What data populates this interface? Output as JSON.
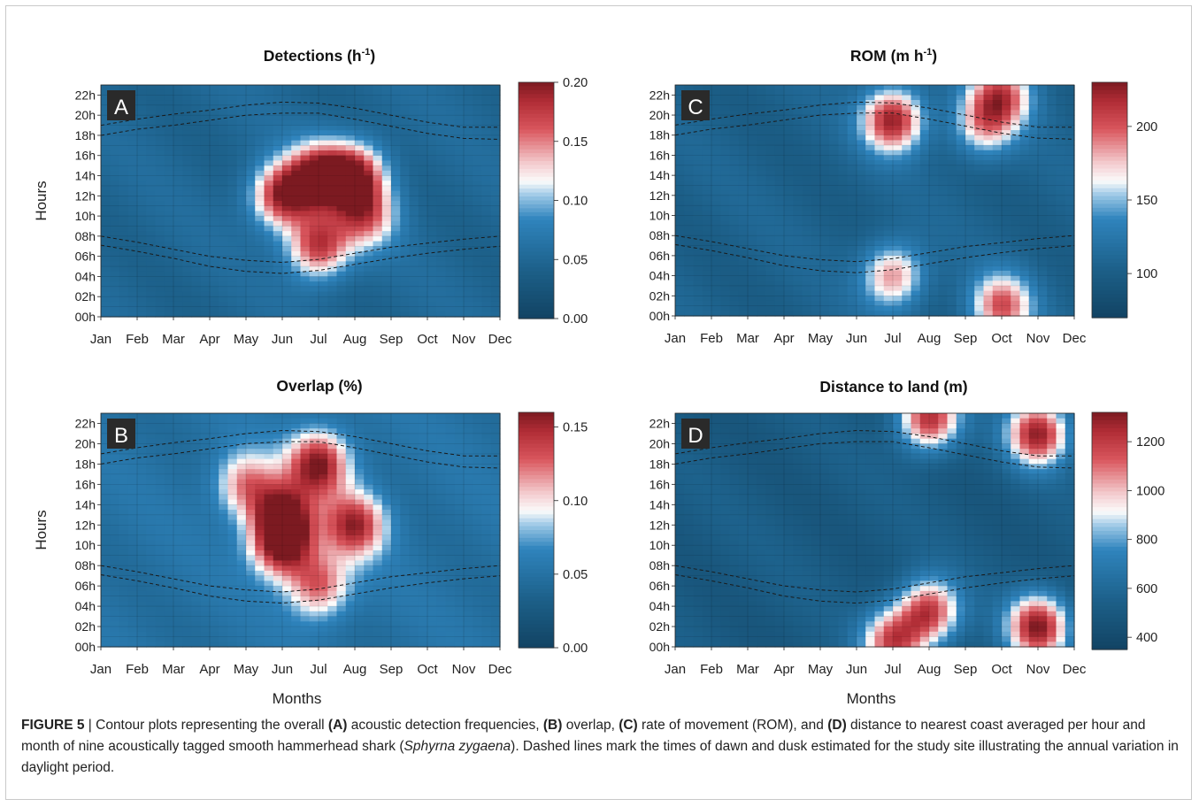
{
  "figure": {
    "caption_label": "FIGURE 5",
    "caption_sep": " | ",
    "caption_parts": [
      {
        "t": "Contour plots representing the overall ",
        "s": "n"
      },
      {
        "t": "(A)",
        "s": "b"
      },
      {
        "t": " acoustic detection frequencies, ",
        "s": "n"
      },
      {
        "t": "(B)",
        "s": "b"
      },
      {
        "t": " overlap, ",
        "s": "n"
      },
      {
        "t": "(C)",
        "s": "b"
      },
      {
        "t": " rate of movement (ROM), and ",
        "s": "n"
      },
      {
        "t": "(D)",
        "s": "b"
      },
      {
        "t": " distance to nearest coast averaged per hour and month of nine acoustically tagged smooth hammerhead shark (",
        "s": "n"
      },
      {
        "t": "Sphyrna zygaena",
        "s": "i"
      },
      {
        "t": "). Dashed lines mark the times of dawn and dusk estimated for the study site illustrating the annual variation in daylight period.",
        "s": "n"
      }
    ]
  },
  "axes": {
    "months": [
      "Jan",
      "Feb",
      "Mar",
      "Apr",
      "May",
      "Jun",
      "Jul",
      "Aug",
      "Sep",
      "Oct",
      "Nov",
      "Dec"
    ],
    "hours": [
      "00h",
      "02h",
      "04h",
      "06h",
      "08h",
      "10h",
      "12h",
      "14h",
      "16h",
      "18h",
      "20h",
      "22h"
    ],
    "xlabel": "Months",
    "ylabel": "Hours"
  },
  "colors": {
    "low": "#124363",
    "mid": "#fbfbfb",
    "high": "#7c1a21",
    "dashed_line": "#1a1a1a"
  },
  "chart_data": [
    {
      "type": "heatmap",
      "panel": "A",
      "title": "Detections (h",
      "title_sup": "-1",
      "title_end": ")",
      "x_months": [
        "Jan",
        "Jun",
        "Jul",
        "Aug",
        "Sep",
        "Dec"
      ],
      "colorbar": {
        "min": 0.0,
        "max": 0.2,
        "ticks": [
          0.0,
          0.05,
          0.1,
          0.15,
          0.2
        ],
        "tick_labels": [
          "0.00",
          "0.05",
          "0.10",
          "0.15",
          "0.20"
        ]
      },
      "background": 0.05,
      "hotspots": [
        {
          "month": 7,
          "hour": 14,
          "value": 0.19
        },
        {
          "month": 6,
          "hour": 12,
          "value": 0.19
        },
        {
          "month": 8,
          "hour": 14,
          "value": 0.19
        },
        {
          "month": 7,
          "hour": 7,
          "value": 0.18
        },
        {
          "month": 8.3,
          "hour": 10,
          "value": 0.15
        }
      ],
      "dawn_dusk": {
        "month": [
          1,
          2,
          3,
          4,
          5,
          6,
          7,
          8,
          9,
          10,
          11,
          12
        ],
        "dawn_early": [
          7.1,
          6.5,
          5.8,
          5.0,
          4.5,
          4.3,
          4.6,
          5.2,
          5.8,
          6.3,
          6.7,
          7.0
        ],
        "dawn_late": [
          8.0,
          7.4,
          6.7,
          6.0,
          5.6,
          5.4,
          5.7,
          6.3,
          6.9,
          7.3,
          7.7,
          8.0
        ],
        "dusk_early": [
          18.0,
          18.6,
          19.0,
          19.5,
          20.0,
          20.2,
          20.2,
          19.6,
          18.9,
          18.2,
          17.7,
          17.6
        ],
        "dusk_late": [
          19.0,
          19.6,
          20.1,
          20.5,
          21.0,
          21.3,
          21.2,
          20.7,
          20.0,
          19.3,
          18.8,
          18.8
        ]
      }
    },
    {
      "type": "heatmap",
      "panel": "B",
      "title": "Overlap (%)",
      "colorbar": {
        "min": 0.0,
        "max": 0.16,
        "ticks": [
          0.0,
          0.05,
          0.1,
          0.15
        ],
        "tick_labels": [
          "0.00",
          "0.05",
          "0.10",
          "0.15"
        ]
      },
      "background": 0.05,
      "hotspots": [
        {
          "month": 6,
          "hour": 13,
          "value": 0.15
        },
        {
          "month": 7,
          "hour": 18,
          "value": 0.16
        },
        {
          "month": 8,
          "hour": 12,
          "value": 0.15
        },
        {
          "month": 6,
          "hour": 10,
          "value": 0.16
        },
        {
          "month": 5,
          "hour": 16,
          "value": 0.12
        },
        {
          "month": 7,
          "hour": 6,
          "value": 0.13
        }
      ]
    },
    {
      "type": "heatmap",
      "panel": "C",
      "title": "ROM (m h",
      "title_sup": "-1",
      "title_end": ")",
      "colorbar": {
        "min": 70,
        "max": 230,
        "ticks": [
          100,
          150,
          200
        ],
        "tick_labels": [
          "100",
          "150",
          "200"
        ]
      },
      "background": 105,
      "hotspots": [
        {
          "month": 7,
          "hour": 19.5,
          "value": 225
        },
        {
          "month": 7,
          "hour": 4,
          "value": 190
        },
        {
          "month": 10,
          "hour": 22,
          "value": 195
        },
        {
          "month": 10,
          "hour": 1,
          "value": 200
        },
        {
          "month": 9.5,
          "hour": 19,
          "value": 175
        }
      ]
    },
    {
      "type": "heatmap",
      "panel": "D",
      "title": "Distance to land (m)",
      "colorbar": {
        "min": 350,
        "max": 1320,
        "ticks": [
          400,
          600,
          800,
          1000,
          1200
        ],
        "tick_labels": [
          "400",
          "600",
          "800",
          "1000",
          "1200"
        ]
      },
      "background": 520,
      "hotspots": [
        {
          "month": 8,
          "hour": 22.5,
          "value": 1250
        },
        {
          "month": 11,
          "hour": 21,
          "value": 1280
        },
        {
          "month": 8,
          "hour": 3.5,
          "value": 1200
        },
        {
          "month": 11,
          "hour": 2,
          "value": 1300
        },
        {
          "month": 7,
          "hour": 0.5,
          "value": 1150
        }
      ]
    }
  ]
}
